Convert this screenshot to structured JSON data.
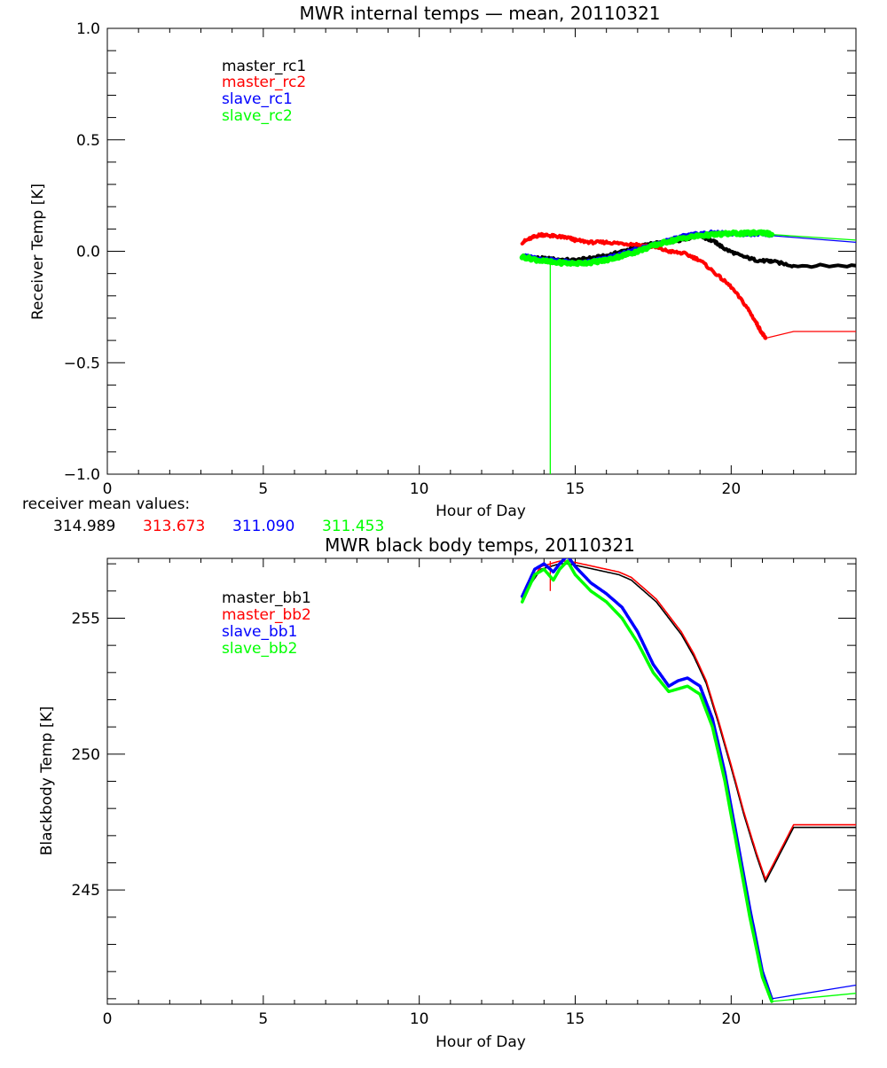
{
  "colors": {
    "master_rc1": "#000000",
    "master_rc2": "#ff0000",
    "slave_rc1": "#0000ff",
    "slave_rc2": "#00ff00"
  },
  "receiver_means": {
    "label": "receiver mean values:",
    "values": [
      "314.989",
      "313.673",
      "311.090",
      "311.453"
    ]
  },
  "chart_data": [
    {
      "type": "line",
      "title": "MWR internal temps — mean, 20110321",
      "xlabel": "Hour of Day",
      "ylabel": "Receiver Temp [K]",
      "xlim": [
        0,
        24
      ],
      "ylim": [
        -1.0,
        1.0
      ],
      "xticks": [
        0,
        5,
        10,
        15,
        20
      ],
      "xtick_labels": [
        "0",
        "5",
        "10",
        "15",
        "20"
      ],
      "yticks": [
        -1.0,
        -0.5,
        0.0,
        0.5,
        1.0
      ],
      "ytick_labels": [
        "−1.0",
        "−0.5",
        "0.0",
        "0.5",
        "1.0"
      ],
      "legend_position": "top-left",
      "series": [
        {
          "name": "master_rc1",
          "color": "#000000",
          "width": 4,
          "x": [
            13.3,
            13.8,
            14.3,
            15.0,
            15.5,
            16.0,
            16.5,
            17.0,
            17.5,
            18.0,
            18.5,
            19.0,
            19.5,
            19.8,
            20.3,
            20.8,
            21.2,
            21.3,
            22.0,
            24.0
          ],
          "y": [
            -0.02,
            -0.03,
            -0.035,
            -0.04,
            -0.03,
            -0.02,
            0.0,
            0.02,
            0.035,
            0.04,
            0.055,
            0.07,
            0.04,
            0.01,
            -0.02,
            -0.04,
            -0.045,
            -0.045,
            -0.065,
            -0.065
          ]
        },
        {
          "name": "master_rc2",
          "color": "#ff0000",
          "width": 4,
          "x": [
            13.3,
            13.6,
            13.9,
            14.2,
            14.5,
            14.8,
            15.0,
            15.5,
            16.0,
            16.5,
            17.0,
            17.5,
            18.0,
            18.5,
            19.0,
            19.5,
            20.0,
            20.5,
            20.8,
            21.0,
            21.1
          ],
          "y": [
            0.04,
            0.06,
            0.075,
            0.07,
            0.065,
            0.06,
            0.05,
            0.04,
            0.04,
            0.035,
            0.03,
            0.02,
            0.0,
            -0.01,
            -0.04,
            -0.1,
            -0.16,
            -0.25,
            -0.32,
            -0.37,
            -0.39
          ],
          "thin": {
            "x": [
              21.1,
              22.0,
              24.0
            ],
            "y": [
              -0.39,
              -0.36,
              -0.36
            ]
          }
        },
        {
          "name": "slave_rc1",
          "color": "#0000ff",
          "width": 4,
          "x": [
            13.3,
            13.8,
            14.3,
            15.0,
            15.5,
            16.0,
            16.5,
            17.0,
            17.5,
            18.0,
            18.5,
            19.0,
            19.5,
            20.0,
            20.5,
            21.0,
            21.3
          ],
          "y": [
            -0.02,
            -0.03,
            -0.04,
            -0.05,
            -0.045,
            -0.03,
            -0.01,
            0.01,
            0.03,
            0.05,
            0.07,
            0.08,
            0.085,
            0.08,
            0.075,
            0.08,
            0.07
          ],
          "thin": {
            "x": [
              21.3,
              24.0
            ],
            "y": [
              0.07,
              0.04
            ]
          }
        },
        {
          "name": "slave_rc2",
          "color": "#00ff00",
          "width": 6,
          "x": [
            13.3,
            13.8,
            14.3,
            15.0,
            15.5,
            16.0,
            16.5,
            17.0,
            17.5,
            18.0,
            18.5,
            19.0,
            19.5,
            20.0,
            20.5,
            21.0,
            21.3
          ],
          "y": [
            -0.025,
            -0.04,
            -0.05,
            -0.055,
            -0.05,
            -0.04,
            -0.02,
            0.0,
            0.025,
            0.045,
            0.06,
            0.07,
            0.075,
            0.08,
            0.08,
            0.085,
            0.075
          ],
          "thin": {
            "x": [
              21.3,
              24.0
            ],
            "y": [
              0.075,
              0.05
            ]
          },
          "spike": {
            "x": 14.2,
            "y": [
              -0.05,
              -1.0
            ]
          }
        }
      ]
    },
    {
      "type": "line",
      "title": "MWR black body temps, 20110321",
      "xlabel": "Hour of Day",
      "ylabel": "Blackbody Temp [K]",
      "xlim": [
        0,
        24
      ],
      "ylim": [
        240.8,
        257.2
      ],
      "xticks": [
        0,
        5,
        10,
        15,
        20
      ],
      "xtick_labels": [
        "0",
        "5",
        "10",
        "15",
        "20"
      ],
      "yticks": [
        245,
        250,
        255
      ],
      "ytick_labels": [
        "245",
        "250",
        "255"
      ],
      "legend_position": "top-left",
      "series": [
        {
          "name": "master_bb1",
          "color": "#000000",
          "width": 1.6,
          "x": [
            13.3,
            13.6,
            13.9,
            14.2,
            14.5,
            14.8,
            15.2,
            15.6,
            16.0,
            16.4,
            16.8,
            17.2,
            17.6,
            18.0,
            18.4,
            18.8,
            19.2,
            19.6,
            20.0,
            20.4,
            20.8,
            21.1,
            22.0,
            24.0
          ],
          "y": [
            255.7,
            256.3,
            256.8,
            256.9,
            257.0,
            257.0,
            256.9,
            256.8,
            256.7,
            256.6,
            256.4,
            256.0,
            255.6,
            255.0,
            254.4,
            253.6,
            252.6,
            251.1,
            249.5,
            247.8,
            246.3,
            245.3,
            247.3,
            247.3
          ]
        },
        {
          "name": "master_bb2",
          "color": "#ff0000",
          "width": 1.6,
          "x": [
            13.3,
            13.6,
            13.9,
            14.2,
            14.5,
            14.8,
            15.2,
            15.6,
            16.0,
            16.4,
            16.8,
            17.2,
            17.6,
            18.0,
            18.4,
            18.8,
            19.2,
            19.6,
            20.0,
            20.4,
            20.8,
            21.1,
            22.0,
            24.0
          ],
          "y": [
            255.6,
            256.4,
            256.9,
            257.0,
            257.1,
            257.1,
            257.0,
            256.9,
            256.8,
            256.7,
            256.5,
            256.1,
            255.7,
            255.1,
            254.5,
            253.7,
            252.7,
            251.2,
            249.6,
            247.9,
            246.4,
            245.4,
            247.4,
            247.4
          ],
          "spike": {
            "x": 14.2,
            "y": [
              257.1,
              256.0
            ]
          }
        },
        {
          "name": "slave_bb1",
          "color": "#0000ff",
          "width": 3.5,
          "x": [
            13.3,
            13.5,
            13.7,
            14.0,
            14.3,
            14.5,
            14.75,
            15.0,
            15.5,
            16.0,
            16.5,
            17.0,
            17.5,
            18.0,
            18.3,
            18.6,
            19.0,
            19.4,
            19.8,
            20.2,
            20.6,
            21.0,
            21.3
          ],
          "y": [
            255.8,
            256.3,
            256.8,
            257.0,
            256.7,
            257.0,
            257.3,
            256.9,
            256.3,
            255.9,
            255.4,
            254.5,
            253.3,
            252.5,
            252.7,
            252.8,
            252.5,
            251.3,
            249.3,
            246.8,
            244.3,
            242.0,
            241.0
          ],
          "thin": {
            "x": [
              21.3,
              24.0
            ],
            "y": [
              241.0,
              241.5
            ]
          }
        },
        {
          "name": "slave_bb2",
          "color": "#00ff00",
          "width": 3.5,
          "x": [
            13.3,
            13.5,
            13.7,
            14.0,
            14.3,
            14.5,
            14.75,
            15.0,
            15.5,
            16.0,
            16.5,
            17.0,
            17.5,
            18.0,
            18.3,
            18.6,
            19.0,
            19.4,
            19.8,
            20.2,
            20.6,
            21.0,
            21.3
          ],
          "y": [
            255.6,
            256.1,
            256.6,
            256.8,
            256.4,
            256.8,
            257.1,
            256.6,
            256.0,
            255.6,
            255.0,
            254.1,
            253.0,
            252.3,
            252.4,
            252.5,
            252.2,
            251.0,
            249.0,
            246.5,
            244.0,
            241.8,
            240.9
          ],
          "thin": {
            "x": [
              21.3,
              24.0
            ],
            "y": [
              240.9,
              241.2
            ]
          }
        }
      ]
    }
  ]
}
